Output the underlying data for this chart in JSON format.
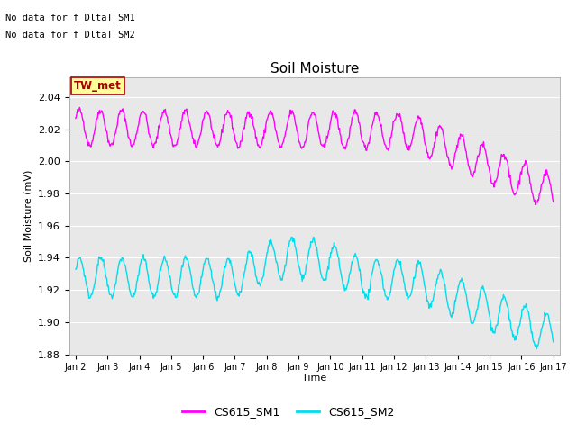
{
  "title": "Soil Moisture",
  "ylabel": "Soil Moisture (mV)",
  "xlabel": "Time",
  "ylim": [
    1.88,
    2.052
  ],
  "yticks": [
    1.88,
    1.9,
    1.92,
    1.94,
    1.96,
    1.98,
    2.0,
    2.02,
    2.04
  ],
  "xtick_labels": [
    "Jan 2",
    "Jan 3",
    "Jan 4",
    "Jan 5",
    "Jan 6",
    "Jan 7",
    "Jan 8",
    "Jan 9",
    "Jan 10",
    "Jan 11",
    "Jan 12",
    "Jan 13",
    "Jan 14",
    "Jan 15",
    "Jan 16",
    "Jan 17"
  ],
  "no_data_text1": "No data for f_DltaT_SM1",
  "no_data_text2": "No data for f_DltaT_SM2",
  "tw_met_label": "TW_met",
  "legend_labels": [
    "CS615_SM1",
    "CS615_SM2"
  ],
  "sm1_color": "#FF00FF",
  "sm2_color": "#00DDEE",
  "fig_facecolor": "#FFFFFF",
  "ax_facecolor": "#E8E8E8",
  "tw_met_bg": "#FFFF99",
  "tw_met_fg": "#AA0000",
  "tw_met_border": "#AA0000",
  "grid_color": "#FFFFFF"
}
